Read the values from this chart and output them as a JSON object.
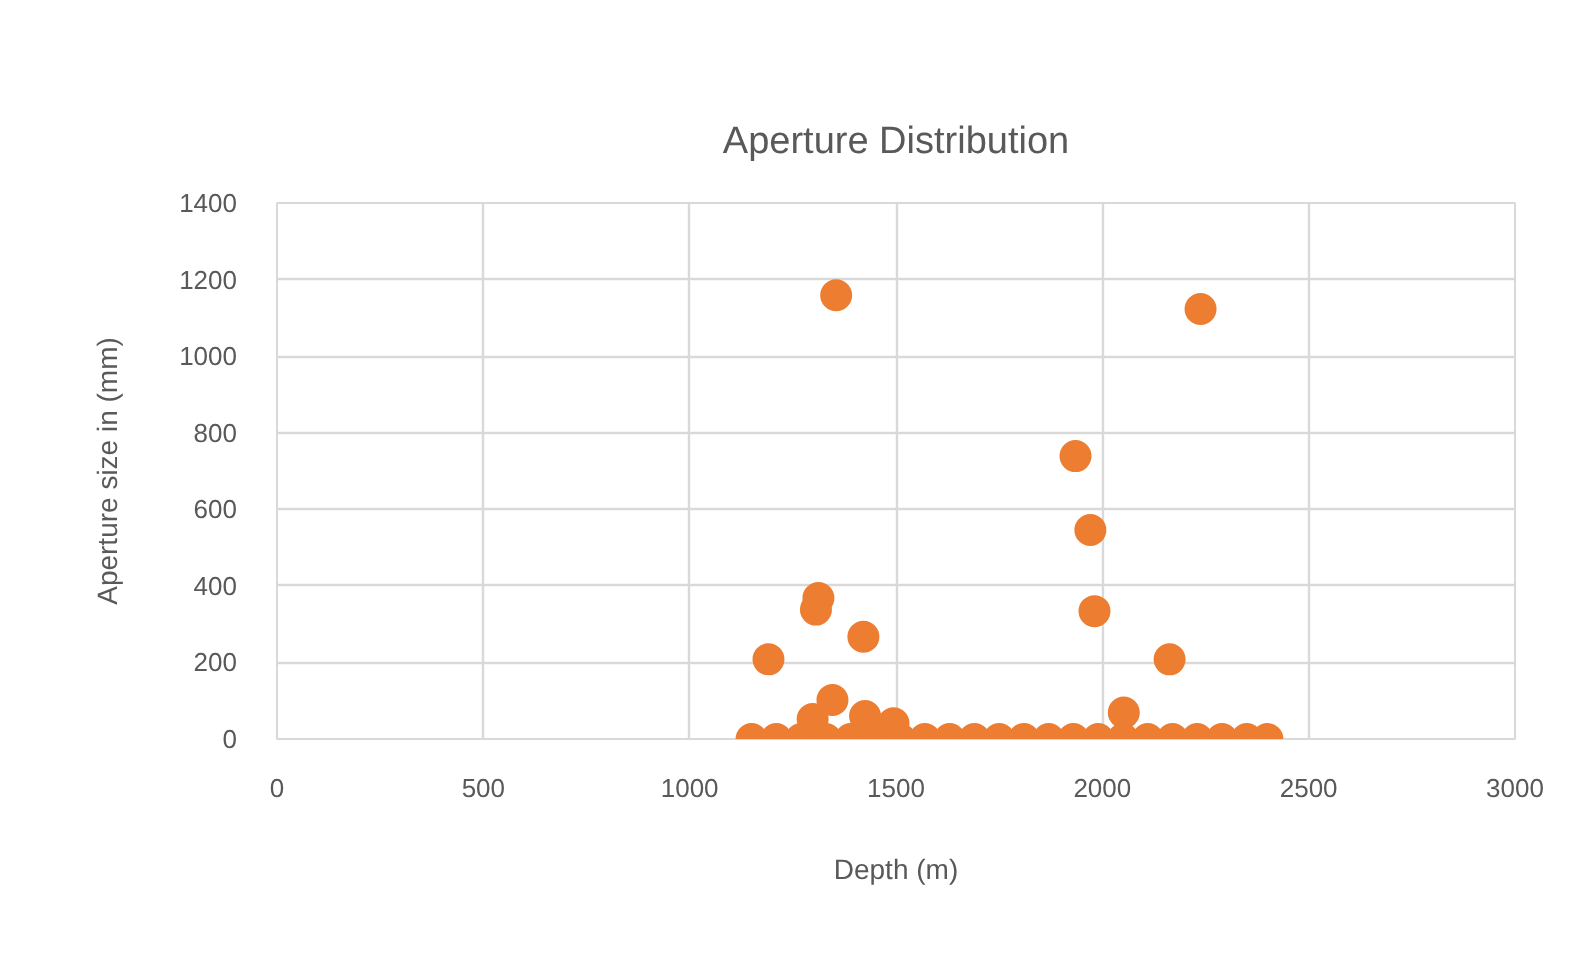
{
  "chart_data": {
    "type": "scatter",
    "title": "Aperture Distribution",
    "xlabel": "Depth (m)",
    "ylabel": "Aperture size in (mm)",
    "xlim": [
      0,
      3000
    ],
    "xticks": [
      0,
      500,
      1000,
      1500,
      2000,
      2500,
      3000
    ],
    "ylim": [
      0,
      1400
    ],
    "yticks": [
      0,
      200,
      400,
      600,
      800,
      1000,
      1200,
      1400
    ],
    "grid": true,
    "marker": "circle",
    "series": [
      {
        "color": "#ed7d31",
        "x": [
          1355,
          2238,
          1935,
          1971,
          1981,
          1312,
          1306,
          1421,
          1191,
          2163,
          1346,
          2052,
          1425,
          1298,
          1494,
          1150,
          1210,
          1270,
          1330,
          1390,
          1450,
          1510,
          1570,
          1630,
          1690,
          1750,
          1810,
          1870,
          1930,
          1990,
          2050,
          2110,
          2170,
          2230,
          2290,
          2350,
          2400
        ],
        "values": [
          1159,
          1123,
          739,
          546,
          334,
          368,
          338,
          267,
          208,
          208,
          102,
          69,
          60,
          52,
          41,
          0,
          0,
          0,
          0,
          0,
          0,
          0,
          0,
          0,
          0,
          0,
          0,
          0,
          0,
          0,
          0,
          0,
          0,
          0,
          0,
          0,
          0
        ]
      }
    ]
  }
}
